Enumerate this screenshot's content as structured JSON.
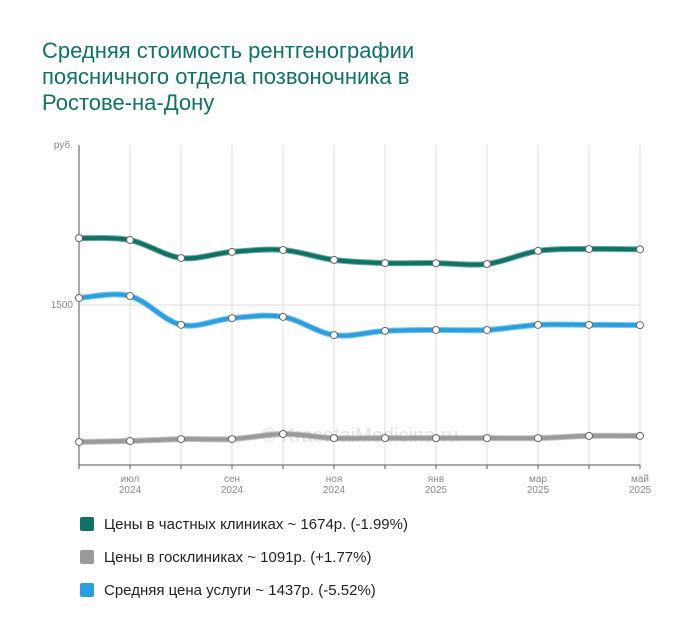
{
  "chart_data": {
    "type": "line",
    "title": "Средняя стоимость рентгенографии поясничного отдела позвоночника в Ростове-на-Дону",
    "y_label": "руб.",
    "watermark": "© KrasotaiMedicina.ru",
    "categories": [
      null,
      "июл 2024",
      null,
      "сен 2024",
      null,
      "ноя 2024",
      null,
      "янв 2025",
      null,
      "мар 2025",
      null,
      "май 2025"
    ],
    "ylim": [
      1000,
      2000
    ],
    "yticks": [
      1500
    ],
    "grid": true,
    "series": [
      {
        "name": "Цены в частных клиниках ~ 1674р. (-1.99%)",
        "color": "#0e7265",
        "values": [
          1709,
          1703,
          1647,
          1666,
          1672,
          1641,
          1631,
          1631,
          1628,
          1669,
          1675,
          1674
        ]
      },
      {
        "name": "Цены в госклиниках ~ 1091р. (+1.77%)",
        "color": "#9a9a9a",
        "values": [
          1072,
          1075,
          1081,
          1081,
          1097,
          1084,
          1084,
          1084,
          1084,
          1084,
          1091,
          1091
        ]
      },
      {
        "name": "Средняя цена услуги ~ 1437р. (-5.52%)",
        "color": "#2a9fe0",
        "values": [
          1522,
          1528,
          1438,
          1459,
          1463,
          1406,
          1419,
          1422,
          1422,
          1438,
          1438,
          1437
        ]
      }
    ]
  }
}
